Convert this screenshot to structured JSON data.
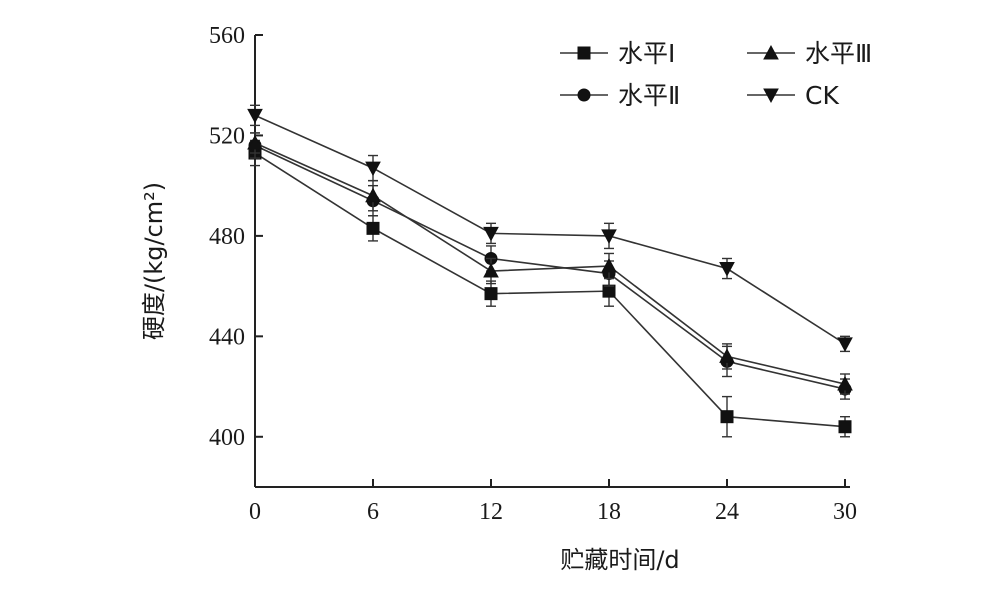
{
  "chart_data": {
    "type": "line",
    "xlabel": "贮藏时间/d",
    "ylabel": "硬度/(kg/cm²)",
    "x": [
      0,
      6,
      12,
      18,
      24,
      30
    ],
    "xlim": [
      0,
      30
    ],
    "ylim": [
      380,
      560
    ],
    "yticks": [
      400,
      440,
      480,
      520,
      560
    ],
    "xticks": [
      0,
      6,
      12,
      18,
      24,
      30
    ],
    "grid": false,
    "legend_position": "top-right",
    "series": [
      {
        "name": "水平Ⅰ",
        "marker": "square",
        "values": [
          513,
          483,
          457,
          458,
          408,
          404
        ],
        "errors": [
          5,
          5,
          5,
          6,
          8,
          4
        ]
      },
      {
        "name": "水平Ⅱ",
        "marker": "circle",
        "values": [
          516,
          494,
          471,
          465,
          430,
          419
        ],
        "errors": [
          5,
          6,
          5,
          5,
          6,
          4
        ]
      },
      {
        "name": "水平Ⅲ",
        "marker": "triangle-up",
        "values": [
          517,
          496,
          466,
          468,
          432,
          421
        ],
        "errors": [
          4,
          6,
          5,
          5,
          5,
          4
        ]
      },
      {
        "name": "CK",
        "marker": "triangle-down",
        "values": [
          528,
          507,
          481,
          480,
          467,
          437
        ],
        "errors": [
          4,
          5,
          4,
          5,
          4,
          3
        ]
      }
    ]
  }
}
